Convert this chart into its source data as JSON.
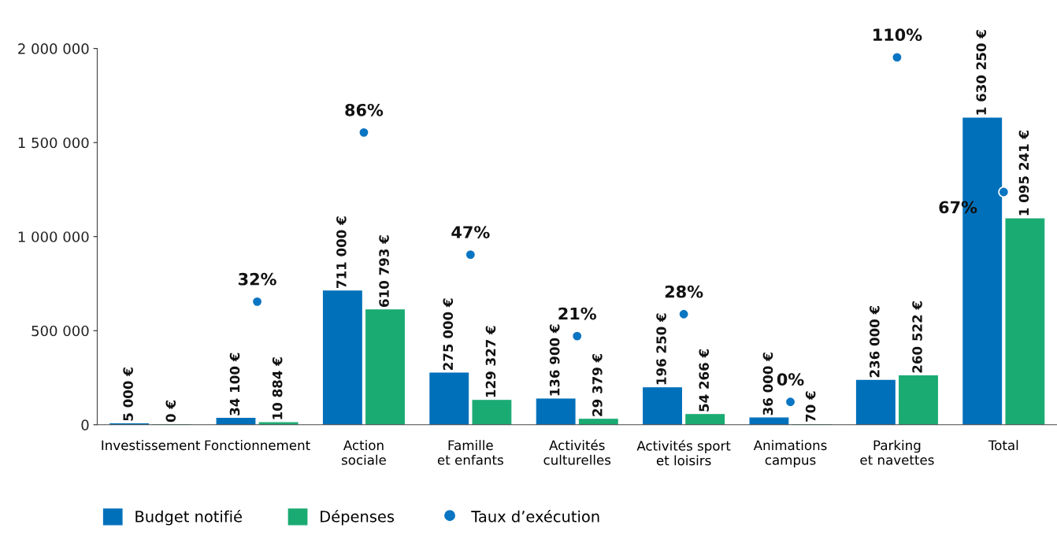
{
  "chart_data": {
    "type": "bar",
    "categories": [
      "Investissement",
      "Fonctionnement",
      "Action\nsociale",
      "Famille\net enfants",
      "Activités\nculturelles",
      "Activités sport\net loisirs",
      "Animations\ncampus",
      "Parking\net navettes",
      "Total"
    ],
    "ylim": [
      0,
      2000000
    ],
    "yticks": [
      0,
      {
        "value": 500000,
        "label": "500 000"
      },
      {
        "value": 1000000,
        "label": "1 000 000"
      },
      {
        "value": 1500000,
        "label": "1 500 000"
      },
      {
        "value": 2000000,
        "label": "2 000 000"
      }
    ],
    "y2lim": [
      -7.3,
      112.8
    ],
    "grid": false,
    "legend": "bottom left",
    "series": [
      {
        "name": "Budget notifié",
        "color": "#0070bb",
        "values": [
          5000,
          34100,
          711000,
          275000,
          136900,
          196250,
          36000,
          236000,
          1630250
        ],
        "value_labels": [
          "5 000 €",
          "34 100 €",
          "711 000 €",
          "275 000 €",
          "136 900 €",
          "196 250 €",
          "36 000 €",
          "236 000 €",
          "1 630 250 €"
        ]
      },
      {
        "name": "Dépenses",
        "color": "#1aab73",
        "values": [
          0,
          10884,
          610793,
          129327,
          29379,
          54266,
          70,
          260522,
          1095241
        ],
        "value_labels": [
          "0 €",
          "10 884 €",
          "610 793 €",
          "129 327 €",
          "29 379 €",
          "54 266 €",
          "70 €",
          "260 522 €",
          "1 095 241 €"
        ]
      },
      {
        "name": "Taux d’exécution",
        "type": "scatter",
        "axis": "y2",
        "color": "#0a75c2",
        "marker": "circle",
        "values": [
          null,
          32,
          86,
          47,
          21,
          28,
          0,
          110,
          67
        ],
        "value_labels": [
          null,
          "32%",
          "86%",
          "47%",
          "21%",
          "28%",
          "0%",
          "110%",
          "67%"
        ]
      }
    ]
  }
}
